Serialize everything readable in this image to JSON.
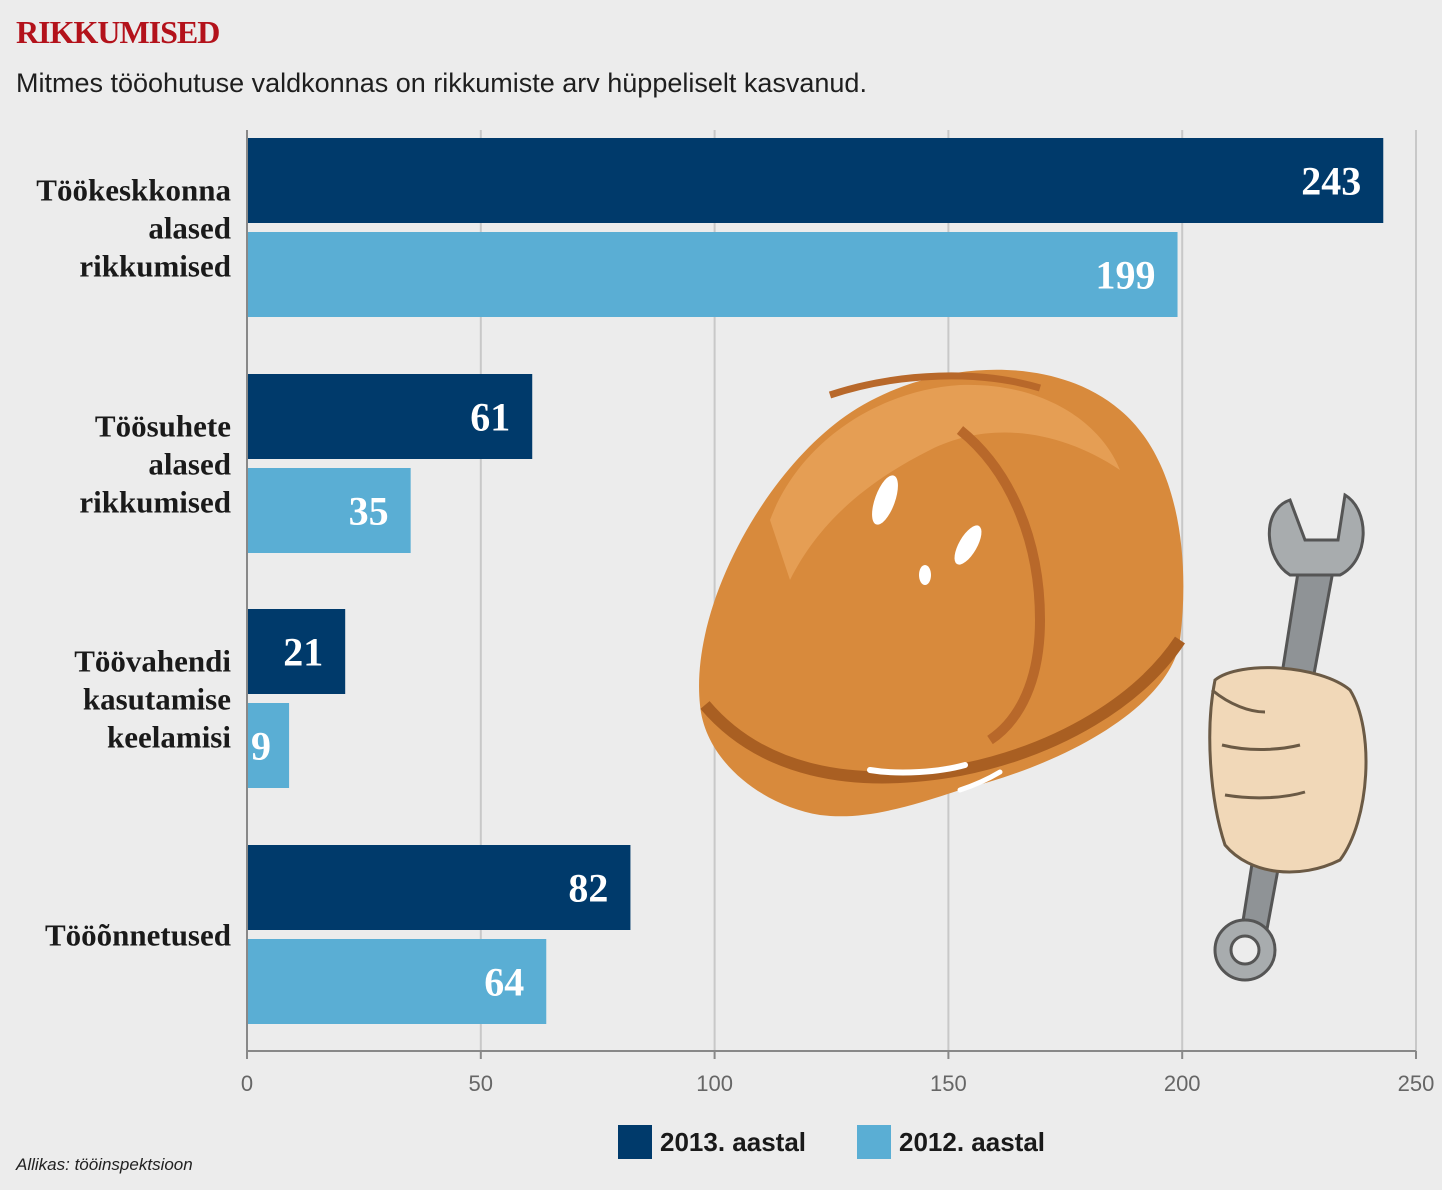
{
  "header": {
    "title": "RIKKUMISED",
    "subtitle": "Mitmes tööohutuse valdkonnas on rikkumiste arv hüppeliselt kasvanud."
  },
  "footer": {
    "source": "Allikas: tööinspektsioon"
  },
  "legend": [
    {
      "label": "2013. aastal",
      "color": "#003a6b"
    },
    {
      "label": "2012. aastal",
      "color": "#5aaed4"
    }
  ],
  "icons": [
    "hard-hat-icon",
    "wrench-in-hand-icon"
  ],
  "chart_data": {
    "type": "bar",
    "orientation": "horizontal",
    "categories": [
      [
        "Töökeskkonna",
        "alased",
        "rikkumised"
      ],
      [
        "Töösuhete",
        "alased",
        "rikkumised"
      ],
      [
        "Töövahendi",
        "kasutamise",
        "keelamisi"
      ],
      [
        "Tööõnnetused"
      ]
    ],
    "series": [
      {
        "name": "2013. aastal",
        "color": "#003a6b",
        "values": [
          243,
          61,
          21,
          82
        ]
      },
      {
        "name": "2012. aastal",
        "color": "#5aaed4",
        "values": [
          199,
          35,
          9,
          64
        ]
      }
    ],
    "xlim": [
      0,
      250
    ],
    "xticks": [
      0,
      50,
      100,
      150,
      200,
      250
    ],
    "grid": true,
    "legend_position": "bottom"
  }
}
